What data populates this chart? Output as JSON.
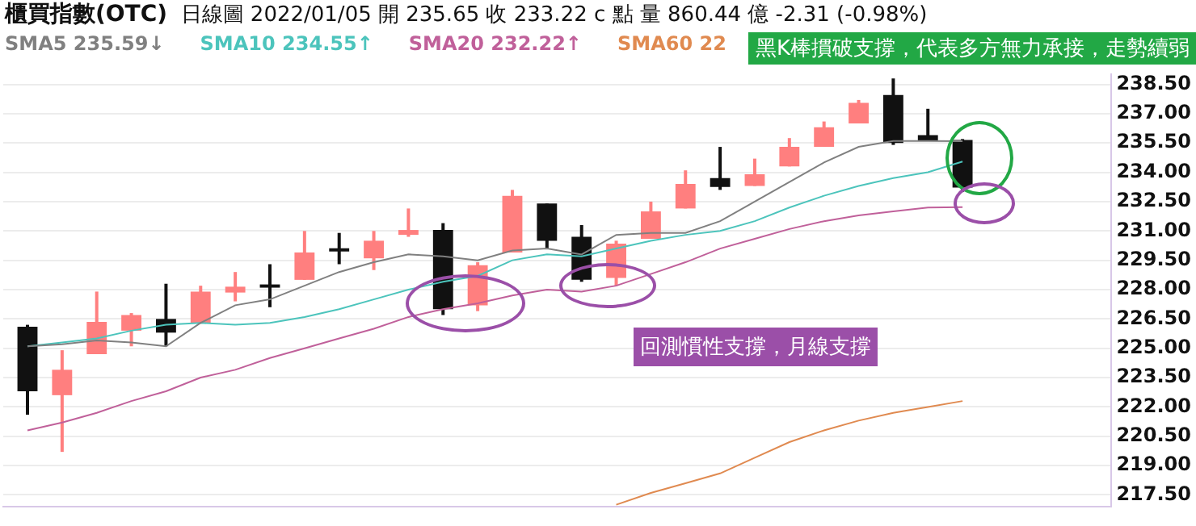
{
  "chart_data": {
    "type": "candlestick",
    "title": "櫃買指數(OTC)",
    "subtitle": "日線圖 2022/01/05 開 235.65 收 233.22 c 點 量 860.44 億 -2.31 (-0.98%)",
    "categories": [
      null,
      null,
      null,
      null,
      null,
      null,
      null,
      null,
      null,
      null,
      null,
      null,
      null,
      null,
      null,
      null,
      null,
      null,
      null,
      null,
      null,
      null,
      null,
      null,
      null,
      null,
      null,
      null
    ],
    "ohlc": [
      [
        226.1,
        226.2,
        221.6,
        222.8
      ],
      [
        222.6,
        224.9,
        219.7,
        223.9
      ],
      [
        224.7,
        227.9,
        224.7,
        226.35
      ],
      [
        225.9,
        226.8,
        225.1,
        226.7
      ],
      [
        226.5,
        228.3,
        225.1,
        225.8
      ],
      [
        226.3,
        228.2,
        226.3,
        227.9
      ],
      [
        227.85,
        228.9,
        227.4,
        228.15
      ],
      [
        228.2,
        229.3,
        227.1,
        228.1
      ],
      [
        228.5,
        231.0,
        228.5,
        229.9
      ],
      [
        230.05,
        230.9,
        229.3,
        229.95
      ],
      [
        229.6,
        231.0,
        229.0,
        230.5
      ],
      [
        230.8,
        232.15,
        230.7,
        231.05
      ],
      [
        231.05,
        231.4,
        226.7,
        227.0
      ],
      [
        227.2,
        229.4,
        226.9,
        229.25
      ],
      [
        229.9,
        233.1,
        229.9,
        232.8
      ],
      [
        232.4,
        232.4,
        230.1,
        230.5
      ],
      [
        230.7,
        231.3,
        228.4,
        228.5
      ],
      [
        228.6,
        230.5,
        228.2,
        230.35
      ],
      [
        230.6,
        232.5,
        230.6,
        232.0
      ],
      [
        232.15,
        234.1,
        232.15,
        233.4
      ],
      [
        233.7,
        235.3,
        233.1,
        233.25
      ],
      [
        233.3,
        234.7,
        233.3,
        233.9
      ],
      [
        234.3,
        235.75,
        234.3,
        235.3
      ],
      [
        235.3,
        236.6,
        235.3,
        236.3
      ],
      [
        236.5,
        237.7,
        236.5,
        237.55
      ],
      [
        237.95,
        238.8,
        235.4,
        235.5
      ],
      [
        235.9,
        237.25,
        235.6,
        235.6
      ],
      [
        235.65,
        235.7,
        233.0,
        233.22
      ]
    ],
    "colors": [
      "#111111",
      "#ff7f7f",
      "#ff7f7f",
      "#ff7f7f",
      "#111111",
      "#ff7f7f",
      "#ff7f7f",
      "#111111",
      "#ff7f7f",
      "#111111",
      "#ff7f7f",
      "#ff7f7f",
      "#111111",
      "#ff7f7f",
      "#ff7f7f",
      "#111111",
      "#111111",
      "#ff7f7f",
      "#ff7f7f",
      "#ff7f7f",
      "#111111",
      "#ff7f7f",
      "#ff7f7f",
      "#ff7f7f",
      "#ff7f7f",
      "#111111",
      "#111111",
      "#111111"
    ],
    "series": [
      {
        "name": "SMA5 235.59↓",
        "color": "#808080",
        "type": "line",
        "values": [
          225.1,
          225.2,
          225.4,
          225.3,
          225.1,
          226.3,
          227.2,
          227.5,
          228.2,
          228.9,
          229.4,
          229.8,
          229.7,
          229.5,
          230.0,
          230.1,
          229.8,
          230.8,
          230.9,
          230.9,
          231.5,
          232.5,
          233.5,
          234.5,
          235.3,
          235.6,
          235.6,
          235.59
        ]
      },
      {
        "name": "SMA10 234.55↑",
        "color": "#4cc4bc",
        "type": "line",
        "values": [
          225.1,
          225.3,
          225.5,
          225.9,
          226.2,
          226.3,
          226.2,
          226.3,
          226.6,
          227.0,
          227.5,
          228.0,
          228.4,
          228.7,
          229.5,
          229.8,
          229.7,
          230.1,
          230.5,
          230.8,
          231.0,
          231.5,
          232.2,
          232.8,
          233.3,
          233.7,
          234.0,
          234.55
        ]
      },
      {
        "name": "SMA20 232.22↑",
        "color": "#c0609a",
        "type": "line",
        "values": [
          220.8,
          221.2,
          221.7,
          222.3,
          222.8,
          223.5,
          223.9,
          224.5,
          225.0,
          225.5,
          226.0,
          226.6,
          227.0,
          227.3,
          227.7,
          228.0,
          227.9,
          228.2,
          228.8,
          229.4,
          230.1,
          230.6,
          231.1,
          231.5,
          231.8,
          232.0,
          232.2,
          232.22
        ]
      },
      {
        "name": "SMA60 22",
        "color": "#e08a50",
        "type": "line",
        "values": [
          null,
          null,
          null,
          null,
          null,
          null,
          null,
          null,
          null,
          null,
          null,
          null,
          null,
          null,
          null,
          null,
          null,
          217.0,
          217.6,
          218.1,
          218.6,
          219.4,
          220.2,
          220.8,
          221.3,
          221.7,
          222.0,
          222.3
        ]
      }
    ],
    "ylim": [
      216.9,
      239.0
    ],
    "yticks": [
      {
        "value": 217.5,
        "label": "217.50"
      },
      {
        "value": 219,
        "label": "219.00"
      },
      {
        "value": 220.5,
        "label": "220.50"
      },
      {
        "value": 222,
        "label": "222.00"
      },
      {
        "value": 223.5,
        "label": "223.50"
      },
      {
        "value": 225,
        "label": "225.00"
      },
      {
        "value": 226.5,
        "label": "226.50"
      },
      {
        "value": 228,
        "label": "228.00"
      },
      {
        "value": 229.5,
        "label": "229.50"
      },
      {
        "value": 231,
        "label": "231.00"
      },
      {
        "value": 232.5,
        "label": "232.50"
      },
      {
        "value": 234,
        "label": "234.00"
      },
      {
        "value": 235.5,
        "label": "235.50"
      },
      {
        "value": 237,
        "label": "237.00"
      },
      {
        "value": 238.5,
        "label": "238.50"
      }
    ],
    "grid": "y",
    "legend": "top left",
    "tick_labels": "y",
    "annotations": [
      "黑K棒摜破支撐，代表多方無力承接，走勢續弱",
      "回測慣性支撐，月線支撐"
    ]
  }
}
